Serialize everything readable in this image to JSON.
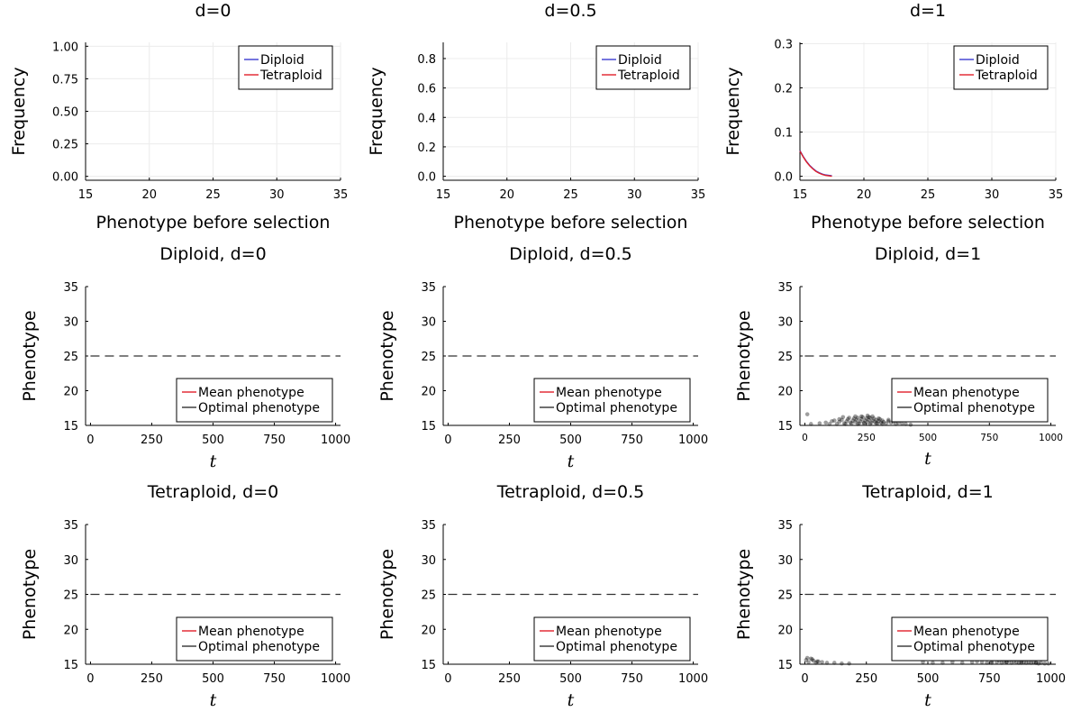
{
  "chart_data": [
    {
      "id": "freq-d0",
      "type": "line",
      "title": "d=0",
      "xlabel": "Phenotype before selection",
      "ylabel": "Frequency",
      "xlim": [
        15,
        35
      ],
      "ylim": [
        -0.03,
        1.03
      ],
      "xticks": [
        15,
        20,
        25,
        30,
        35
      ],
      "xtick_labels": [
        "15",
        "20",
        "25",
        "30",
        "35"
      ],
      "yticks": [
        0,
        0.25,
        0.5,
        0.75,
        1.0
      ],
      "ytick_labels": [
        "0.00",
        "0.25",
        "0.50",
        "0.75",
        "1.00"
      ],
      "grid": true,
      "legend": "top-right",
      "series": [
        {
          "name": "Diploid",
          "color": "#3a3ad0",
          "x": [],
          "y": []
        },
        {
          "name": "Tetraploid",
          "color": "#e0202a",
          "x": [],
          "y": []
        }
      ]
    },
    {
      "id": "freq-d05",
      "type": "line",
      "title": "d=0.5",
      "xlabel": "Phenotype before selection",
      "ylabel": "Frequency",
      "xlim": [
        15,
        35
      ],
      "ylim": [
        -0.027,
        0.91
      ],
      "xticks": [
        15,
        20,
        25,
        30,
        35
      ],
      "xtick_labels": [
        "15",
        "20",
        "25",
        "30",
        "35"
      ],
      "yticks": [
        0,
        0.2,
        0.4,
        0.6,
        0.8
      ],
      "ytick_labels": [
        "0.0",
        "0.2",
        "0.4",
        "0.6",
        "0.8"
      ],
      "grid": true,
      "legend": "top-right",
      "series": [
        {
          "name": "Diploid",
          "color": "#3a3ad0",
          "x": [],
          "y": []
        },
        {
          "name": "Tetraploid",
          "color": "#e0202a",
          "x": [],
          "y": []
        }
      ]
    },
    {
      "id": "freq-d1",
      "type": "line",
      "title": "d=1",
      "xlabel": "Phenotype before selection",
      "ylabel": "Frequency",
      "xlim": [
        15,
        35
      ],
      "ylim": [
        -0.009,
        0.303
      ],
      "xticks": [
        15,
        20,
        25,
        30,
        35
      ],
      "xtick_labels": [
        "15",
        "20",
        "25",
        "30",
        "35"
      ],
      "yticks": [
        0,
        0.1,
        0.2,
        0.3
      ],
      "ytick_labels": [
        "0.0",
        "0.1",
        "0.2",
        "0.3"
      ],
      "grid": true,
      "legend": "top-right",
      "series": [
        {
          "name": "Diploid",
          "color": "#3a3ad0",
          "x": [
            15.0,
            15.25,
            15.5,
            15.75,
            16.0,
            16.25,
            16.5,
            16.75,
            17.0,
            17.25,
            17.5
          ],
          "y": [
            0.058,
            0.045,
            0.034,
            0.025,
            0.018,
            0.012,
            0.008,
            0.005,
            0.003,
            0.002,
            0.001
          ]
        },
        {
          "name": "Tetraploid",
          "color": "#e0202a",
          "x": [
            15.0,
            15.25,
            15.5,
            15.75,
            16.0,
            16.25,
            16.5,
            16.75,
            17.0,
            17.25,
            17.5
          ],
          "y": [
            0.057,
            0.044,
            0.033,
            0.024,
            0.017,
            0.011,
            0.007,
            0.004,
            0.002,
            0.001,
            0.0
          ]
        }
      ]
    },
    {
      "id": "dip-d0",
      "type": "line",
      "title": "Diploid, d=0",
      "xlabel": "t",
      "ylabel": "Phenotype",
      "xlim": [
        -20,
        1020
      ],
      "ylim": [
        15,
        35
      ],
      "xticks": [
        0,
        250,
        500,
        750,
        1000
      ],
      "xtick_labels": [
        "0",
        "250",
        "500",
        "750",
        "1000"
      ],
      "yticks": [
        15,
        20,
        25,
        30,
        35
      ],
      "ytick_labels": [
        "15",
        "20",
        "25",
        "30",
        "35"
      ],
      "grid": false,
      "legend": "bottom-right",
      "series": [
        {
          "name": "Mean phenotype",
          "color": "#e0202a",
          "x": [],
          "y": []
        },
        {
          "name": "Optimal phenotype",
          "color": "#333333",
          "dashed": true,
          "x": [
            0,
            1020
          ],
          "y": [
            25,
            25
          ]
        }
      ]
    },
    {
      "id": "dip-d05",
      "type": "line",
      "title": "Diploid, d=0.5",
      "xlabel": "t",
      "ylabel": "Phenotype",
      "xlim": [
        -20,
        1020
      ],
      "ylim": [
        15,
        35
      ],
      "xticks": [
        0,
        250,
        500,
        750,
        1000
      ],
      "xtick_labels": [
        "0",
        "250",
        "500",
        "750",
        "1000"
      ],
      "yticks": [
        15,
        20,
        25,
        30,
        35
      ],
      "ytick_labels": [
        "15",
        "20",
        "25",
        "30",
        "35"
      ],
      "grid": false,
      "legend": "bottom-right",
      "series": [
        {
          "name": "Mean phenotype",
          "color": "#e0202a",
          "x": [],
          "y": []
        },
        {
          "name": "Optimal phenotype",
          "color": "#333333",
          "dashed": true,
          "x": [
            0,
            1020
          ],
          "y": [
            25,
            25
          ]
        }
      ]
    },
    {
      "id": "dip-d1",
      "type": "scatter",
      "title": "Diploid, d=1",
      "xlabel": "t",
      "ylabel": "Phenotype",
      "xlim": [
        -20,
        1020
      ],
      "ylim": [
        15,
        35
      ],
      "xticks": [
        0,
        250,
        500,
        750,
        1000
      ],
      "xtick_labels": [
        "0",
        "250",
        "500",
        "750",
        "1000"
      ],
      "yticks": [
        15,
        20,
        25,
        30,
        35
      ],
      "ytick_labels": [
        "15",
        "20",
        "25",
        "30",
        "35"
      ],
      "grid": false,
      "legend": "bottom-right",
      "small_x_ticks": true,
      "series": [
        {
          "name": "Mean phenotype",
          "color": "#e0202a",
          "x": [],
          "y": []
        },
        {
          "name": "Optimal phenotype",
          "color": "#333333",
          "dashed": true,
          "x": [
            0,
            1020
          ],
          "y": [
            25,
            25
          ]
        }
      ],
      "points": {
        "color": "#000000",
        "x": [
          10,
          25,
          60,
          85,
          110,
          130,
          140,
          150,
          160,
          170,
          175,
          185,
          195,
          200,
          205,
          210,
          215,
          220,
          225,
          230,
          235,
          240,
          245,
          250,
          255,
          260,
          265,
          270,
          275,
          280,
          285,
          290,
          295,
          300,
          305,
          310,
          315,
          320,
          330,
          340,
          350,
          360,
          370,
          380,
          395,
          410,
          430,
          140,
          165,
          190,
          215,
          240,
          265,
          290,
          315,
          180,
          230,
          260,
          300,
          120,
          100,
          155,
          205,
          255,
          275,
          340,
          360
        ],
        "y": [
          16.6,
          15.2,
          15.3,
          15.4,
          15.6,
          15.2,
          15.5,
          15.8,
          15.3,
          15.6,
          15.9,
          15.4,
          15.7,
          16.0,
          15.5,
          15.8,
          16.1,
          15.3,
          15.6,
          15.9,
          16.2,
          15.4,
          15.7,
          16.0,
          15.5,
          15.8,
          16.1,
          15.4,
          15.7,
          16.0,
          15.5,
          15.8,
          15.3,
          15.6,
          15.9,
          15.4,
          15.7,
          15.5,
          15.3,
          15.6,
          15.4,
          15.5,
          15.2,
          15.4,
          15.3,
          15.2,
          15.1,
          15.9,
          15.2,
          15.3,
          15.2,
          15.3,
          15.2,
          15.3,
          15.2,
          16.1,
          16.3,
          16.2,
          16.0,
          15.7,
          15.2,
          16.2,
          16.3,
          16.4,
          16.3,
          15.8,
          15.9
        ]
      }
    },
    {
      "id": "tet-d0",
      "type": "line",
      "title": "Tetraploid, d=0",
      "xlabel": "t",
      "ylabel": "Phenotype",
      "xlim": [
        -20,
        1020
      ],
      "ylim": [
        15,
        35
      ],
      "xticks": [
        0,
        250,
        500,
        750,
        1000
      ],
      "xtick_labels": [
        "0",
        "250",
        "500",
        "750",
        "1000"
      ],
      "yticks": [
        15,
        20,
        25,
        30,
        35
      ],
      "ytick_labels": [
        "15",
        "20",
        "25",
        "30",
        "35"
      ],
      "grid": false,
      "legend": "bottom-right",
      "series": [
        {
          "name": "Mean phenotype",
          "color": "#e0202a",
          "x": [],
          "y": []
        },
        {
          "name": "Optimal phenotype",
          "color": "#333333",
          "dashed": true,
          "x": [
            0,
            1020
          ],
          "y": [
            25,
            25
          ]
        }
      ]
    },
    {
      "id": "tet-d05",
      "type": "line",
      "title": "Tetraploid, d=0.5",
      "xlabel": "t",
      "ylabel": "Phenotype",
      "xlim": [
        -20,
        1020
      ],
      "ylim": [
        15,
        35
      ],
      "xticks": [
        0,
        250,
        500,
        750,
        1000
      ],
      "xtick_labels": [
        "0",
        "250",
        "500",
        "750",
        "1000"
      ],
      "yticks": [
        15,
        20,
        25,
        30,
        35
      ],
      "ytick_labels": [
        "15",
        "20",
        "25",
        "30",
        "35"
      ],
      "grid": false,
      "legend": "bottom-right",
      "series": [
        {
          "name": "Mean phenotype",
          "color": "#e0202a",
          "x": [],
          "y": []
        },
        {
          "name": "Optimal phenotype",
          "color": "#333333",
          "dashed": true,
          "x": [
            0,
            1020
          ],
          "y": [
            25,
            25
          ]
        }
      ]
    },
    {
      "id": "tet-d1",
      "type": "scatter",
      "title": "Tetraploid, d=1",
      "xlabel": "t",
      "ylabel": "Phenotype",
      "xlim": [
        -20,
        1020
      ],
      "ylim": [
        15,
        35
      ],
      "xticks": [
        0,
        250,
        500,
        750,
        1000
      ],
      "xtick_labels": [
        "0",
        "250",
        "500",
        "750",
        "1000"
      ],
      "yticks": [
        15,
        20,
        25,
        30,
        35
      ],
      "ytick_labels": [
        "15",
        "20",
        "25",
        "30",
        "35"
      ],
      "grid": false,
      "legend": "bottom-right",
      "series": [
        {
          "name": "Mean phenotype",
          "color": "#e0202a",
          "x": [],
          "y": []
        },
        {
          "name": "Optimal phenotype",
          "color": "#333333",
          "dashed": true,
          "x": [
            0,
            1020
          ],
          "y": [
            25,
            25
          ]
        }
      ],
      "points": {
        "color": "#000000",
        "x": [
          5,
          15,
          25,
          35,
          45,
          55,
          70,
          90,
          120,
          150,
          180,
          480,
          520,
          560,
          600,
          640,
          680,
          700,
          720,
          740,
          760,
          780,
          790,
          800,
          810,
          820,
          830,
          840,
          850,
          860,
          870,
          880,
          890,
          900,
          910,
          920,
          930,
          940,
          950,
          960,
          975,
          990,
          10,
          30,
          50,
          760,
          820,
          880,
          940
        ],
        "y": [
          15.6,
          15.3,
          15.8,
          15.5,
          15.2,
          15.4,
          15.3,
          15.2,
          15.2,
          15.1,
          15.1,
          15.3,
          15.2,
          15.2,
          15.3,
          15.2,
          15.3,
          15.4,
          15.3,
          15.2,
          15.4,
          15.3,
          15.5,
          15.2,
          15.4,
          15.3,
          15.5,
          15.2,
          15.4,
          15.3,
          15.2,
          15.4,
          15.3,
          15.2,
          15.3,
          15.2,
          15.3,
          15.2,
          15.1,
          15.2,
          15.1,
          15.1,
          15.9,
          15.7,
          15.4,
          15.2,
          15.3,
          15.2,
          15.2
        ]
      }
    }
  ]
}
